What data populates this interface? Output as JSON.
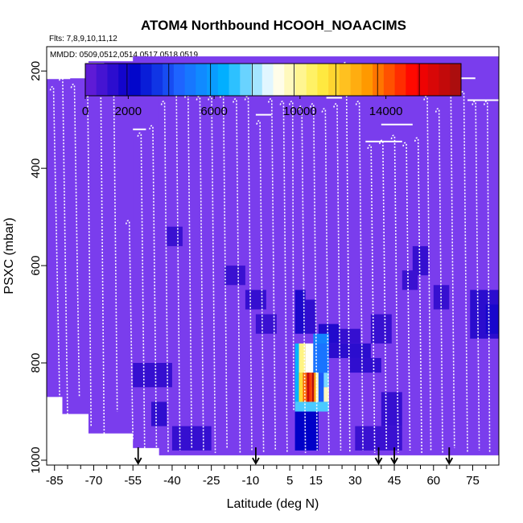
{
  "chart_data": {
    "type": "heatmap",
    "title": "ATOM4 Northbound HCOOH_NOAACIMS",
    "subtitle_flights": "Flts: 7,8,9,10,11,12",
    "subtitle_dates": "MMDD: 0509,0512,0514,0517,0518,0519",
    "xlabel": "Latitude (deg N)",
    "ylabel": "PSXC (mbar)",
    "xlim": [
      -88,
      85
    ],
    "ylim": [
      1010,
      150
    ],
    "x_ticks": [
      -85,
      -70,
      -55,
      -40,
      -25,
      -10,
      5,
      15,
      30,
      45,
      60,
      75
    ],
    "x_tick_labels": [
      "-85",
      "-70",
      "-55",
      "-40",
      "-25",
      "-10",
      "5",
      "15",
      "30",
      "45",
      "60",
      "75"
    ],
    "x_minor_ticks": [
      -80,
      -75,
      -65,
      -60,
      -50,
      -45,
      -35,
      -30,
      -20,
      -15,
      -5,
      0,
      10,
      20,
      25,
      35,
      40,
      50,
      55,
      65,
      70,
      80
    ],
    "y_ticks": [
      200,
      400,
      600,
      800,
      1000
    ],
    "y_tick_labels": [
      "200",
      "400",
      "600",
      "800",
      "1000"
    ],
    "colorbar": {
      "range": [
        0,
        17500
      ],
      "ticks": [
        0,
        2000,
        6000,
        10000,
        14000
      ],
      "tick_labels": [
        "0",
        "2000",
        "6000",
        "10000",
        "14000"
      ],
      "colors": [
        "#6a1fd8",
        "#0000c8",
        "#1e64ff",
        "#00b4ff",
        "#ffffff",
        "#ffee44",
        "#ff9900",
        "#ff0000",
        "#a01010"
      ]
    },
    "background_value": 700,
    "background_color": "#7a3ded",
    "data_domain": [
      [
        -88,
        215,
        870
      ],
      [
        -82,
        215,
        905
      ],
      [
        -72,
        180,
        945
      ],
      [
        -55,
        170,
        975
      ],
      [
        -45,
        170,
        990
      ],
      [
        85,
        170,
        1000
      ]
    ],
    "cells": [
      {
        "lat": [
          7,
          16
        ],
        "p": [
          900,
          980
        ],
        "value": 2200
      },
      {
        "lat": [
          7,
          11
        ],
        "p": [
          650,
          740
        ],
        "value": 1600
      },
      {
        "lat": [
          11,
          15
        ],
        "p": [
          670,
          740
        ],
        "value": 1200
      },
      {
        "lat": [
          16,
          24
        ],
        "p": [
          720,
          760
        ],
        "value": 1500
      },
      {
        "lat": [
          16,
          36
        ],
        "p": [
          760,
          790
        ],
        "value": 1300
      },
      {
        "lat": [
          28,
          40
        ],
        "p": [
          790,
          820
        ],
        "value": 1200
      },
      {
        "lat": [
          24,
          32
        ],
        "p": [
          730,
          760
        ],
        "value": 1100
      },
      {
        "lat": [
          7,
          20
        ],
        "p": [
          820,
          850
        ],
        "value": 7600
      },
      {
        "lat": [
          7,
          20
        ],
        "p": [
          850,
          880
        ],
        "value": 9500
      },
      {
        "lat": [
          7,
          20
        ],
        "p": [
          880,
          900
        ],
        "value": 7200
      },
      {
        "lat": [
          14,
          20
        ],
        "p": [
          740,
          820
        ],
        "value": 5200
      },
      {
        "lat": [
          7,
          8.5
        ],
        "p": [
          760,
          880
        ],
        "value": 6500
      },
      {
        "lat": [
          8.5,
          11
        ],
        "p": [
          760,
          820
        ],
        "value": 10200
      },
      {
        "lat": [
          11,
          14
        ],
        "p": [
          760,
          820
        ],
        "value": 8800
      },
      {
        "lat": [
          14,
          20
        ],
        "p": [
          760,
          820
        ],
        "value": 4800
      },
      {
        "lat": [
          8.5,
          10
        ],
        "p": [
          820,
          880
        ],
        "value": 11500
      },
      {
        "lat": [
          10,
          11.5
        ],
        "p": [
          820,
          880
        ],
        "value": 13800
      },
      {
        "lat": [
          11.5,
          12.5
        ],
        "p": [
          820,
          880
        ],
        "value": 16500
      },
      {
        "lat": [
          12.5,
          13.5
        ],
        "p": [
          820,
          880
        ],
        "value": 14500
      },
      {
        "lat": [
          13.5,
          14.3
        ],
        "p": [
          820,
          880
        ],
        "value": 17000
      },
      {
        "lat": [
          14.3,
          15
        ],
        "p": [
          820,
          880
        ],
        "value": 13000
      },
      {
        "lat": [
          15,
          16
        ],
        "p": [
          820,
          880
        ],
        "value": 9600
      },
      {
        "lat": [
          16,
          18
        ],
        "p": [
          820,
          880
        ],
        "value": 4200
      },
      {
        "lat": [
          -55,
          -40
        ],
        "p": [
          800,
          850
        ],
        "value": 1100
      },
      {
        "lat": [
          -48,
          -42
        ],
        "p": [
          880,
          930
        ],
        "value": 1200
      },
      {
        "lat": [
          -40,
          -25
        ],
        "p": [
          930,
          980
        ],
        "value": 1100
      },
      {
        "lat": [
          -42,
          -36
        ],
        "p": [
          520,
          560
        ],
        "value": 1000
      },
      {
        "lat": [
          -20,
          -12
        ],
        "p": [
          600,
          640
        ],
        "value": 1000
      },
      {
        "lat": [
          -12,
          -4
        ],
        "p": [
          650,
          690
        ],
        "value": 1100
      },
      {
        "lat": [
          -8,
          0
        ],
        "p": [
          700,
          740
        ],
        "value": 1000
      },
      {
        "lat": [
          36,
          44
        ],
        "p": [
          700,
          760
        ],
        "value": 1050
      },
      {
        "lat": [
          52,
          58
        ],
        "p": [
          560,
          620
        ],
        "value": 1100
      },
      {
        "lat": [
          48,
          54
        ],
        "p": [
          610,
          650
        ],
        "value": 1000
      },
      {
        "lat": [
          60,
          66
        ],
        "p": [
          640,
          690
        ],
        "value": 1050
      },
      {
        "lat": [
          74,
          85
        ],
        "p": [
          650,
          750
        ],
        "value": 1300
      },
      {
        "lat": [
          80,
          85
        ],
        "p": [
          680,
          740
        ],
        "value": 1700
      },
      {
        "lat": [
          40,
          48
        ],
        "p": [
          860,
          930
        ],
        "value": 1100
      },
      {
        "lat": [
          30,
          48
        ],
        "p": [
          930,
          980
        ],
        "value": 1000
      }
    ],
    "profiles": [
      {
        "lat_top": -86.0,
        "lat_bottom": -83.0,
        "p_top": 230,
        "p_bottom": 880
      },
      {
        "lat_top": -82.5,
        "lat_bottom": -80.0,
        "p_top": 210,
        "p_bottom": 910
      },
      {
        "lat_top": -78.0,
        "lat_bottom": -75.5,
        "p_top": 225,
        "p_bottom": 870
      },
      {
        "lat_top": -73.0,
        "lat_bottom": -71.0,
        "p_top": 200,
        "p_bottom": 930
      },
      {
        "lat_top": -68.0,
        "lat_bottom": -66.0,
        "p_top": 190,
        "p_bottom": 950
      },
      {
        "lat_top": -63.0,
        "lat_bottom": -61.0,
        "p_top": 200,
        "p_bottom": 900
      },
      {
        "lat_top": -57.0,
        "lat_bottom": -55.0,
        "p_top": 505,
        "p_bottom": 960
      },
      {
        "lat_top": -52.5,
        "lat_bottom": -50.5,
        "p_top": 325,
        "p_bottom": 985
      },
      {
        "lat_top": -48.0,
        "lat_bottom": -46.0,
        "p_top": 310,
        "p_bottom": 975
      },
      {
        "lat_top": -43.5,
        "lat_bottom": -41.5,
        "p_top": 260,
        "p_bottom": 985
      },
      {
        "lat_top": -39.0,
        "lat_bottom": -37.0,
        "p_top": 240,
        "p_bottom": 980
      },
      {
        "lat_top": -34.5,
        "lat_bottom": -32.5,
        "p_top": 245,
        "p_bottom": 975
      },
      {
        "lat_top": -30.0,
        "lat_bottom": -28.0,
        "p_top": 250,
        "p_bottom": 980
      },
      {
        "lat_top": -25.5,
        "lat_bottom": -23.5,
        "p_top": 250,
        "p_bottom": 985
      },
      {
        "lat_top": -21.0,
        "lat_bottom": -19.0,
        "p_top": 245,
        "p_bottom": 975
      },
      {
        "lat_top": -16.0,
        "lat_bottom": -14.0,
        "p_top": 255,
        "p_bottom": 985
      },
      {
        "lat_top": -11.5,
        "lat_bottom": -9.5,
        "p_top": 250,
        "p_bottom": 980
      },
      {
        "lat_top": -7.0,
        "lat_bottom": -5.0,
        "p_top": 300,
        "p_bottom": 985
      },
      {
        "lat_top": -2.5,
        "lat_bottom": -0.5,
        "p_top": 255,
        "p_bottom": 980
      },
      {
        "lat_top": 2.0,
        "lat_bottom": 4.0,
        "p_top": 260,
        "p_bottom": 985
      },
      {
        "lat_top": 5.5,
        "lat_bottom": 6.5,
        "p_top": 260,
        "p_bottom": 900
      },
      {
        "lat_top": 9.0,
        "lat_bottom": 11.0,
        "p_top": 270,
        "p_bottom": 985
      },
      {
        "lat_top": 13.5,
        "lat_bottom": 15.5,
        "p_top": 265,
        "p_bottom": 980
      },
      {
        "lat_top": 18.0,
        "lat_bottom": 20.0,
        "p_top": 275,
        "p_bottom": 985
      },
      {
        "lat_top": 22.5,
        "lat_bottom": 24.5,
        "p_top": 265,
        "p_bottom": 980
      },
      {
        "lat_top": 26.0,
        "lat_bottom": 28.0,
        "p_top": 180,
        "p_bottom": 985
      },
      {
        "lat_top": 31.0,
        "lat_bottom": 33.0,
        "p_top": 260,
        "p_bottom": 980
      },
      {
        "lat_top": 35.5,
        "lat_bottom": 37.5,
        "p_top": 350,
        "p_bottom": 985
      },
      {
        "lat_top": 40.0,
        "lat_bottom": 42.0,
        "p_top": 340,
        "p_bottom": 980
      },
      {
        "lat_top": 44.5,
        "lat_bottom": 46.5,
        "p_top": 330,
        "p_bottom": 985
      },
      {
        "lat_top": 49.0,
        "lat_bottom": 51.0,
        "p_top": 345,
        "p_bottom": 980
      },
      {
        "lat_top": 53.5,
        "lat_bottom": 55.5,
        "p_top": 335,
        "p_bottom": 985
      },
      {
        "lat_top": 57.0,
        "lat_bottom": 59.0,
        "p_top": 250,
        "p_bottom": 980
      },
      {
        "lat_top": 61.5,
        "lat_bottom": 63.5,
        "p_top": 275,
        "p_bottom": 985
      },
      {
        "lat_top": 66.0,
        "lat_bottom": 68.0,
        "p_top": 235,
        "p_bottom": 975
      },
      {
        "lat_top": 71.0,
        "lat_bottom": 73.0,
        "p_top": 240,
        "p_bottom": 985
      },
      {
        "lat_top": 75.5,
        "lat_bottom": 77.5,
        "p_top": 260,
        "p_bottom": 980
      },
      {
        "lat_top": 80.0,
        "lat_bottom": 81.5,
        "p_top": 260,
        "p_bottom": 985
      }
    ],
    "level_legs": [
      {
        "lat": [
          -88,
          -79
        ],
        "p": 215
      },
      {
        "lat": [
          -72,
          -66
        ],
        "p": 185
      },
      {
        "lat": [
          -55,
          -50
        ],
        "p": 320
      },
      {
        "lat": [
          -37,
          -28
        ],
        "p": 240
      },
      {
        "lat": [
          -8,
          -2
        ],
        "p": 290
      },
      {
        "lat": [
          19,
          25
        ],
        "p": 255
      },
      {
        "lat": [
          34,
          48
        ],
        "p": 345
      },
      {
        "lat": [
          40,
          52
        ],
        "p": 310
      },
      {
        "lat": [
          64,
          76
        ],
        "p": 215
      },
      {
        "lat": [
          73,
          85
        ],
        "p": 260
      }
    ],
    "arrow_latitudes": [
      -53,
      -8,
      39,
      45,
      66
    ]
  }
}
